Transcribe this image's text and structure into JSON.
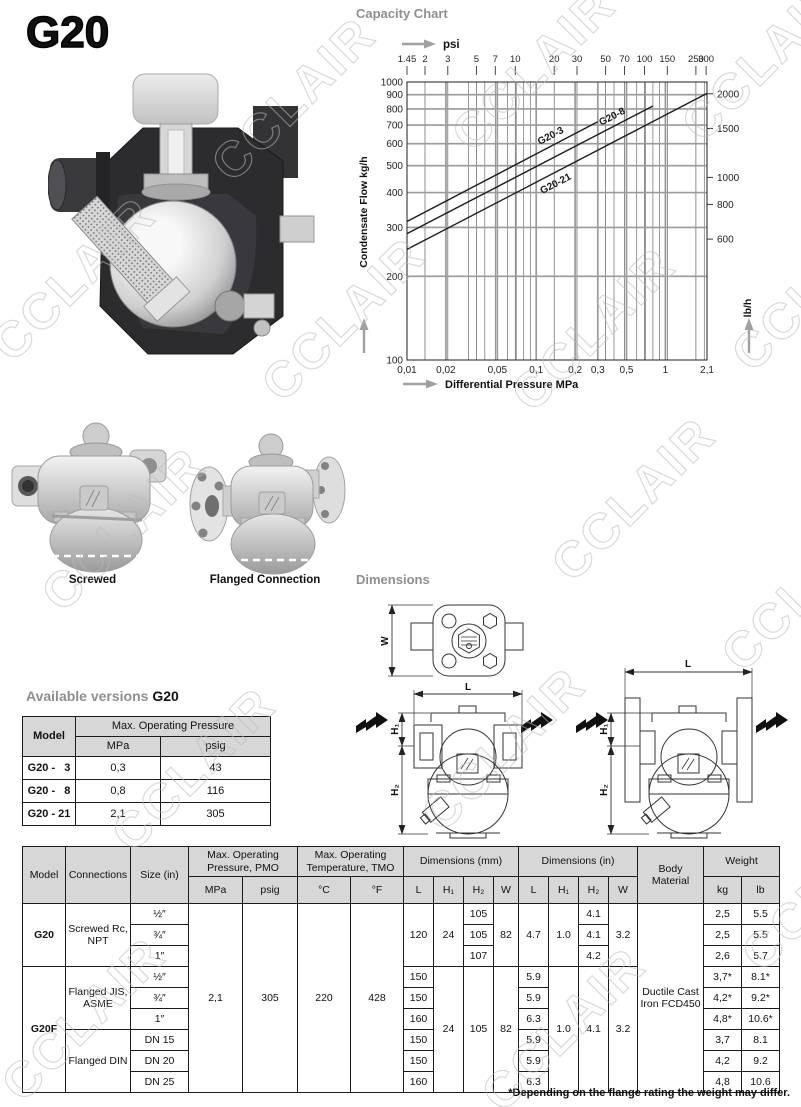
{
  "page": {
    "product_title": "G20"
  },
  "watermark": {
    "text": "CCLAIR"
  },
  "chart_heading": "Capacity Chart",
  "photos": {
    "screwed_caption": "Screwed",
    "flanged_caption": "Flanged Connection"
  },
  "dims": {
    "heading": "Dimensions",
    "w": "W",
    "l": "L",
    "h1": "H₁",
    "h2": "H₂"
  },
  "versions": {
    "heading_prefix": "Available versions",
    "heading_model": "G20",
    "col_model": "Model",
    "col_group": "Max. Operating Pressure",
    "col_mpa": "MPa",
    "col_psig": "psig",
    "rows": [
      {
        "model": "G20 -   3",
        "mpa": "0,3",
        "psig": "43"
      },
      {
        "model": "G20 -   8",
        "mpa": "0,8",
        "psig": "116"
      },
      {
        "model": "G20 - 21",
        "mpa": "2,1",
        "psig": "305"
      }
    ]
  },
  "spec": {
    "h": {
      "model": "Model",
      "connections": "Connections",
      "size": "Size (in)",
      "pmo": "Max. Operating Pressure,  PMO",
      "tmo": "Max. Operating Temperature, TMO",
      "dim_mm": "Dimensions (mm)",
      "dim_in": "Dimensions (in)",
      "body": "Body Material",
      "weight": "Weight",
      "mpa": "MPa",
      "psig": "psig",
      "c": "°C",
      "f": "°F",
      "L": "L",
      "H1": "H₁",
      "H2": "H₂",
      "W": "W",
      "kg": "kg",
      "lb": "lb"
    },
    "merged": {
      "mpa": "2,1",
      "psig": "305",
      "c": "220",
      "f": "428",
      "body": "Ductile Cast Iron FCD450"
    },
    "rows": [
      {
        "model": "G20",
        "conn": "Screwed Rc, NPT",
        "size": "½″",
        "l_mm": "120",
        "h1_mm": "24",
        "h2_mm": "105",
        "w_mm": "82",
        "l_in": "4.7",
        "h1_in": "1.0",
        "h2_in": "4.1",
        "w_in": "3.2",
        "kg": "2,5",
        "lb": "5.5"
      },
      {
        "size": "¾″",
        "h2_mm": "105",
        "h2_in": "4.1",
        "kg": "2,5",
        "lb": "5.5"
      },
      {
        "size": "1″",
        "h2_mm": "107",
        "h2_in": "4.2",
        "kg": "2,6",
        "lb": "5.7"
      },
      {
        "model": "G20F",
        "conn": "Flanged JIS, ASME",
        "size": "½″",
        "l_mm": "150",
        "h1_mm": "24",
        "h2_mm": "105",
        "w_mm": "82",
        "l_in": "5.9",
        "h1_in": "1.0",
        "h2_in": "4.1",
        "w_in": "3.2",
        "kg": "3,7*",
        "lb": "8.1*"
      },
      {
        "size": "¾″",
        "l_mm": "150",
        "l_in": "5.9",
        "kg": "4,2*",
        "lb": "9.2*"
      },
      {
        "size": "1″",
        "l_mm": "160",
        "l_in": "6.3",
        "kg": "4,8*",
        "lb": "10.6*"
      },
      {
        "conn": "Flanged DIN",
        "size": "DN 15",
        "l_mm": "150",
        "l_in": "5.9",
        "kg": "3,7",
        "lb": "8.1"
      },
      {
        "size": "DN 20",
        "l_mm": "150",
        "l_in": "5.9",
        "kg": "4,2",
        "lb": "9.2"
      },
      {
        "size": "DN 25",
        "l_mm": "160",
        "l_in": "6.3",
        "kg": "4,8",
        "lb": "10.6"
      }
    ],
    "footnote": "*Depending on the flange rating the weight may differ."
  },
  "chart_data": {
    "type": "line",
    "title": "Capacity Chart",
    "x2label": "psi",
    "xlabel": "Differential Pressure MPa",
    "ylabel": "Condensate Flow kg/h",
    "y2label": "lb/h",
    "xscale": "log",
    "yscale": "log",
    "xlim": [
      0.01,
      2.1
    ],
    "ylim": [
      100,
      1000
    ],
    "psi_per_mpa": 145.04,
    "x_ticks_mpa": {
      "values": [
        0.01,
        0.02,
        0.05,
        0.1,
        0.2,
        0.3,
        0.5,
        1,
        2.1
      ],
      "labels": [
        "0,01",
        "0,02",
        "0,05",
        "0,1",
        "0,2",
        "0,3",
        "0,5",
        "1",
        "2,1"
      ]
    },
    "x_ticks_psi": [
      1.45,
      2,
      3,
      5,
      7,
      10,
      20,
      30,
      50,
      70,
      100,
      150,
      250,
      300
    ],
    "y_ticks_kgh": [
      100,
      200,
      300,
      400,
      500,
      600,
      700,
      800,
      900,
      1000
    ],
    "y2_ticks_lbh": [
      600,
      800,
      1000,
      1500,
      2000
    ],
    "grid_mpa_major": [
      0.02,
      0.05,
      0.1,
      0.2,
      0.3,
      0.5,
      1
    ],
    "grid_mpa_minor": [
      0.03,
      0.04,
      0.06,
      0.07,
      0.08,
      0.09,
      0.4,
      0.6,
      0.7,
      0.8,
      0.9,
      2
    ],
    "grid_psi": [
      2,
      3,
      5,
      7,
      10,
      20,
      30,
      50,
      70,
      100,
      150,
      250
    ],
    "grid_kgh": [
      200,
      300,
      400,
      500,
      600,
      700,
      800,
      900
    ],
    "legend_position": "on-line-labels",
    "grid": true,
    "series": [
      {
        "name": "G20-3",
        "x": [
          0.01,
          0.3
        ],
        "y": [
          315,
          720
        ],
        "label_pos": 0.76,
        "label_dy": -7
      },
      {
        "name": "G20-8",
        "x": [
          0.01,
          0.8
        ],
        "y": [
          285,
          820
        ],
        "label_pos": 0.84,
        "label_dy": -7
      },
      {
        "name": "G20-21",
        "x": [
          0.01,
          2.1
        ],
        "y": [
          250,
          910
        ],
        "label_pos": 0.5,
        "label_dy": 15
      }
    ]
  }
}
